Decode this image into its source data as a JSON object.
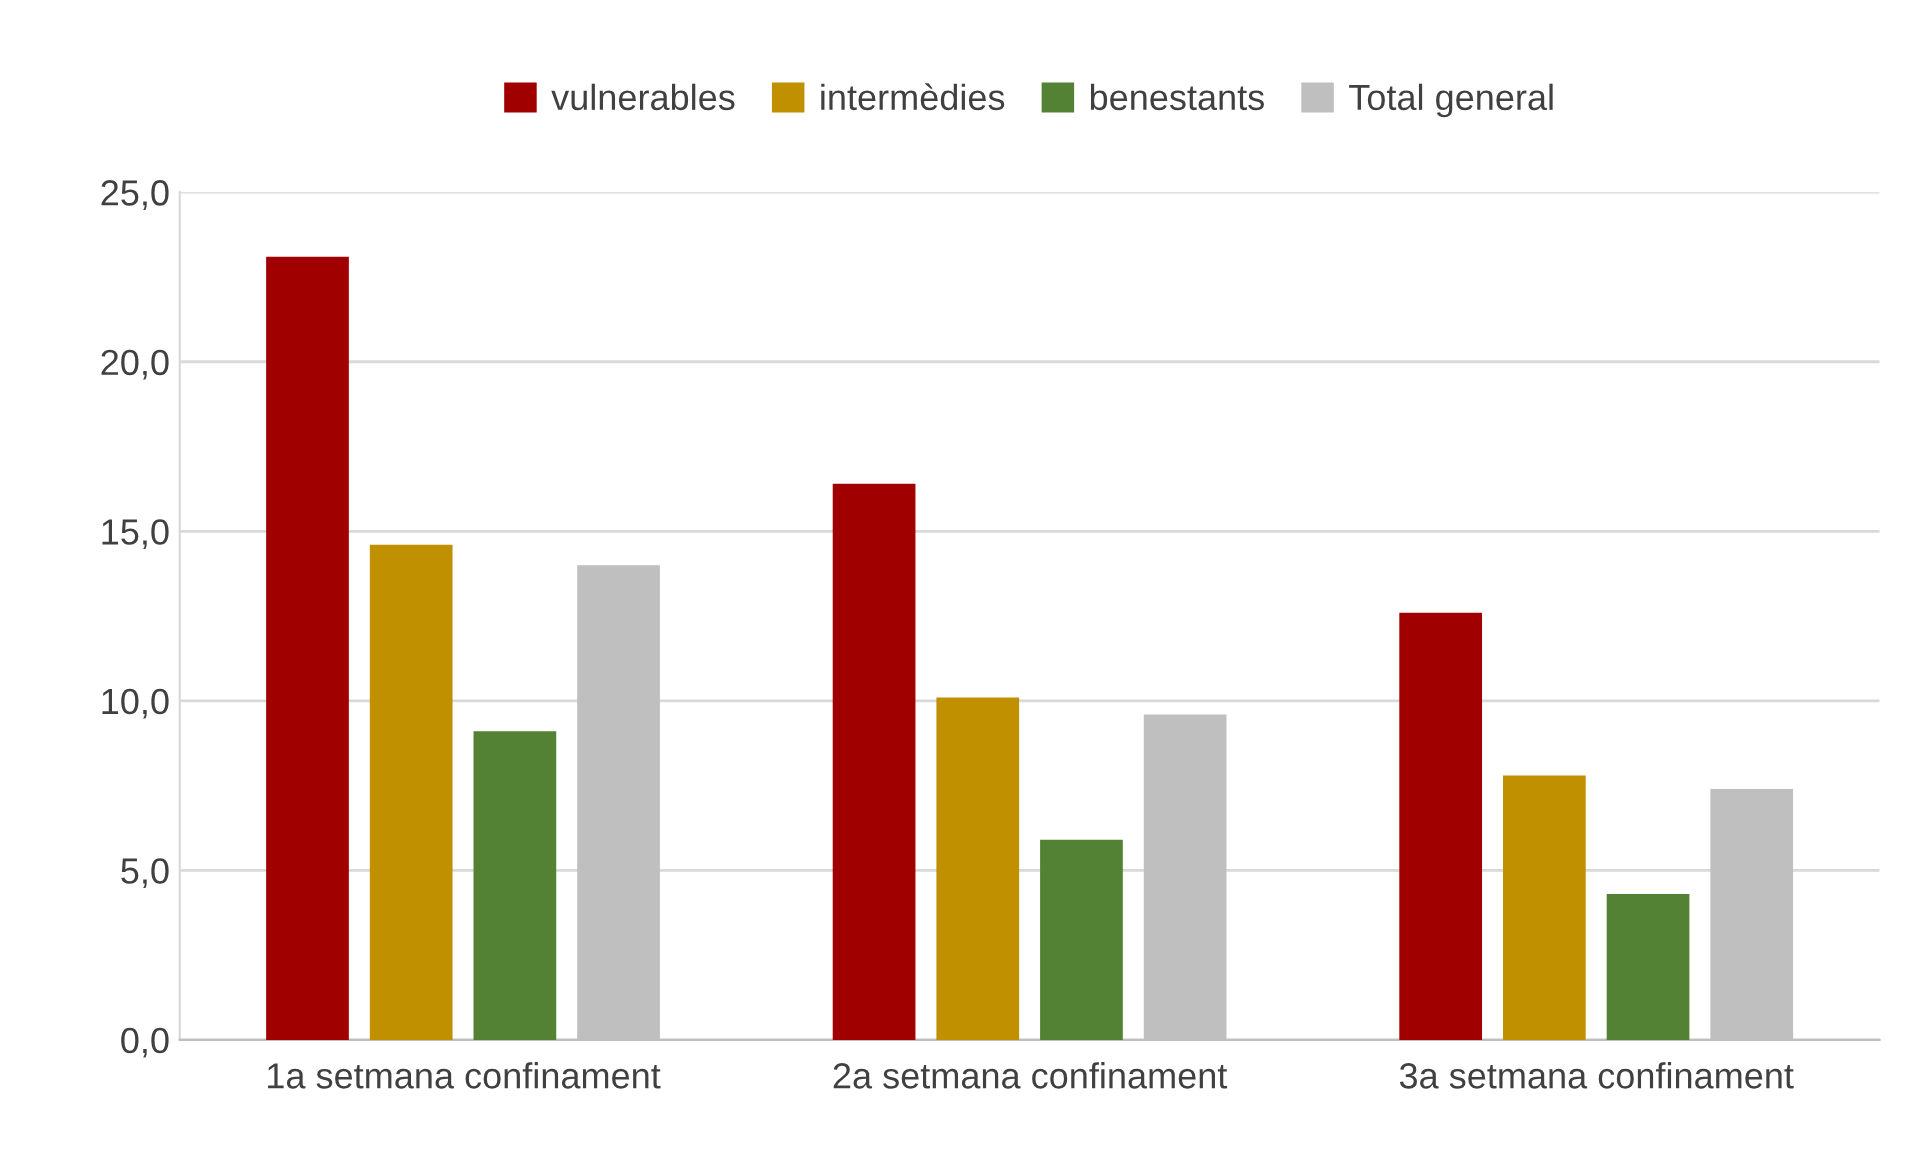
{
  "chart_data": {
    "type": "bar",
    "categories": [
      "1a setmana confinament",
      "2a setmana confinament",
      "3a setmana confinament"
    ],
    "series": [
      {
        "name": "vulnerables",
        "color": "#a00000",
        "values": [
          23.1,
          16.4,
          12.6
        ]
      },
      {
        "name": "intermèdies",
        "color": "#c09000",
        "values": [
          14.6,
          10.1,
          7.8
        ]
      },
      {
        "name": "benestants",
        "color": "#548235",
        "values": [
          9.1,
          5.9,
          4.3
        ]
      },
      {
        "name": "Total general",
        "color": "#bfbfbf",
        "values": [
          14.0,
          9.6,
          7.4
        ]
      }
    ],
    "ylim": [
      0,
      25
    ],
    "yticks": [
      {
        "value": 0,
        "label": "0,0"
      },
      {
        "value": 5,
        "label": "5,0"
      },
      {
        "value": 10,
        "label": "10,0"
      },
      {
        "value": 15,
        "label": "15,0"
      },
      {
        "value": 20,
        "label": "20,0"
      },
      {
        "value": 25,
        "label": "25,0"
      }
    ],
    "grid": "y",
    "legend": "top"
  }
}
